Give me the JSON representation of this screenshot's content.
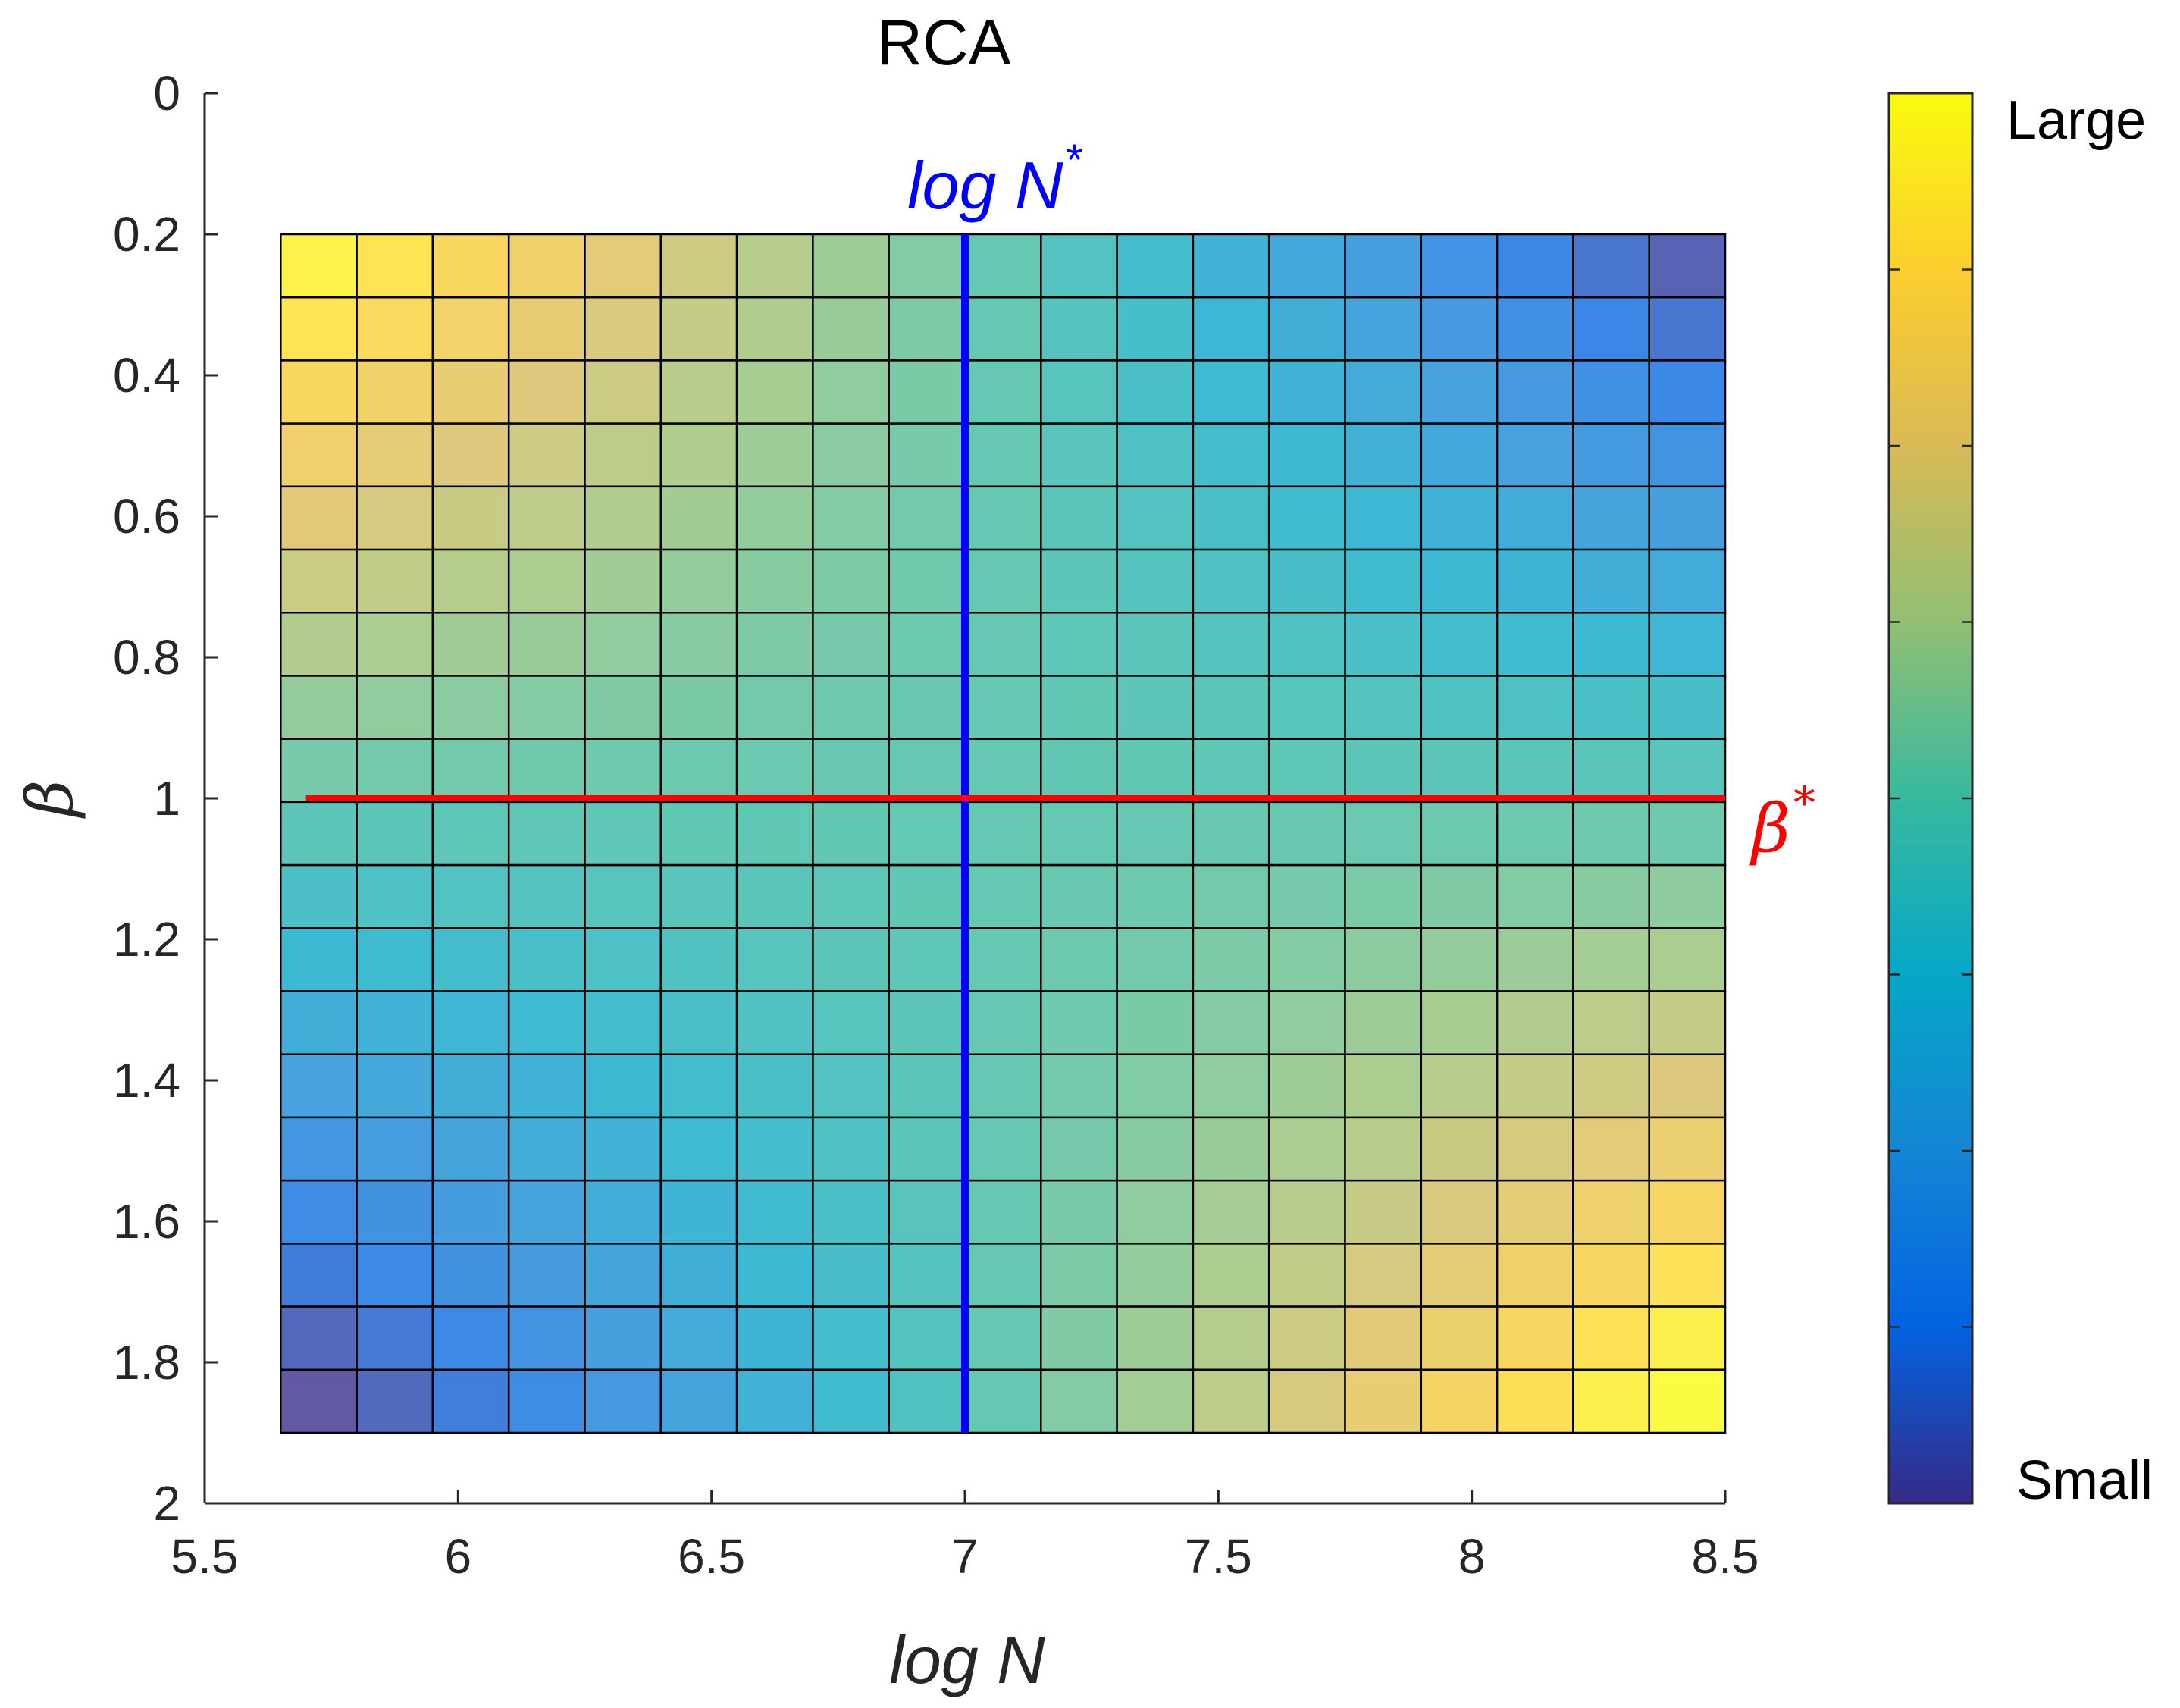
{
  "chart_data": {
    "type": "heatmap",
    "title": "RCA",
    "xlabel": "log N",
    "ylabel": "β",
    "xlim": [
      5.5,
      8.5
    ],
    "ylim": [
      0,
      2
    ],
    "y_reversed": true,
    "x_ticks": [
      "5.5",
      "6",
      "6.5",
      "7",
      "7.5",
      "8",
      "8.5"
    ],
    "y_ticks": [
      "0",
      "0.2",
      "0.4",
      "0.6",
      "0.8",
      "1",
      "1.2",
      "1.4",
      "1.6",
      "1.8",
      "2"
    ],
    "grid": {
      "x_start": 5.65,
      "x_end": 8.5,
      "columns": 19,
      "y_start": 0.2,
      "y_end": 1.9,
      "rows": 19
    },
    "value_model": "normalized value = clamp(0.5 + 0.5*((row-9)/9)*((col-9)/9)*0.98 + 0.02*((col-9)/9), 0, 1); row index along beta from 0.2 downward, col index along log N from 5.65 rightward",
    "colorbar": {
      "top_label": "Large",
      "bottom_label": "Small",
      "colormap": "parula"
    },
    "reference_lines": [
      {
        "orientation": "vertical",
        "x": 7.0,
        "y_from": 0.2,
        "y_to": 1.9,
        "color": "#0000ff",
        "label": "log N",
        "superscript": "*"
      },
      {
        "orientation": "horizontal",
        "y": 1.0,
        "x_from": 5.7,
        "x_to": 8.5,
        "color": "#ff0000",
        "label": "β",
        "superscript": "*"
      }
    ]
  }
}
